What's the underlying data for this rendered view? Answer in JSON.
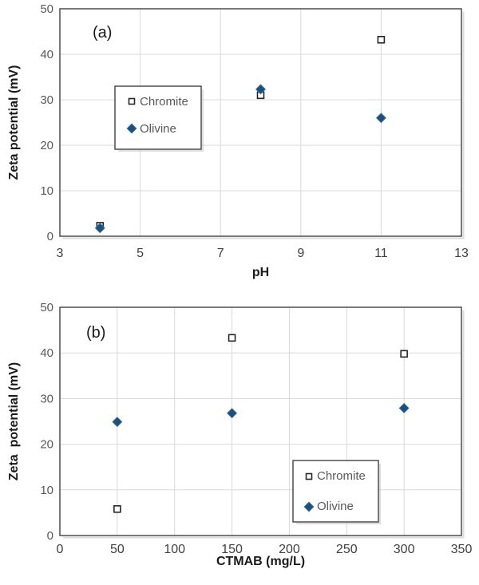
{
  "figure": {
    "background": "#ffffff",
    "accent_colors": {
      "olivine_fill": "#1F4E79",
      "olivine_stroke": "#2E6DA4",
      "chromite_fill": "#FFFFFF",
      "chromite_stroke": "#262626",
      "gridline": "#D9D9D9",
      "plot_border": "#404040",
      "shadow": "#C6C6C6",
      "tick_label": "#595959"
    }
  },
  "chart_data": [
    {
      "type": "scatter",
      "panel_label": "(a)",
      "title": "",
      "xlabel": "pH",
      "ylabel": "Zeta potential (mV)",
      "xlim": [
        3,
        13
      ],
      "ylim": [
        0,
        50
      ],
      "xticks": [
        3,
        5,
        7,
        9,
        11,
        13
      ],
      "yticks": [
        0,
        10,
        20,
        30,
        40,
        50
      ],
      "grid": true,
      "legend_position": "inside-upper-left-center",
      "legend_entries": [
        "Chromite",
        "Olivine"
      ],
      "series": [
        {
          "name": "Chromite",
          "marker": "open-square",
          "fill": "#FFFFFF",
          "stroke": "#262626",
          "points": [
            {
              "x": 4,
              "y": 2.3
            },
            {
              "x": 8,
              "y": 31.0
            },
            {
              "x": 11,
              "y": 43.2
            }
          ]
        },
        {
          "name": "Olivine",
          "marker": "filled-diamond",
          "fill": "#1F4E79",
          "stroke": "#2E6DA4",
          "points": [
            {
              "x": 4,
              "y": 1.8
            },
            {
              "x": 8,
              "y": 32.3
            },
            {
              "x": 11,
              "y": 26.0
            }
          ]
        }
      ]
    },
    {
      "type": "scatter",
      "panel_label": "(b)",
      "title": "",
      "xlabel": "CTMAB (mg/L)",
      "ylabel": "Zeta  potential (mV)",
      "xlim": [
        0,
        350
      ],
      "ylim": [
        0,
        50
      ],
      "xticks": [
        0,
        50,
        100,
        150,
        200,
        250,
        300,
        350
      ],
      "yticks": [
        0,
        10,
        20,
        30,
        40,
        50
      ],
      "grid": true,
      "legend_position": "inside-lower-right",
      "legend_entries": [
        "Chromite",
        "Olivine"
      ],
      "series": [
        {
          "name": "Chromite",
          "marker": "open-square",
          "fill": "#FFFFFF",
          "stroke": "#262626",
          "points": [
            {
              "x": 50,
              "y": 5.8
            },
            {
              "x": 150,
              "y": 43.3
            },
            {
              "x": 300,
              "y": 39.8
            }
          ]
        },
        {
          "name": "Olivine",
          "marker": "filled-diamond",
          "fill": "#1F4E79",
          "stroke": "#2E6DA4",
          "points": [
            {
              "x": 50,
              "y": 24.9
            },
            {
              "x": 150,
              "y": 26.8
            },
            {
              "x": 300,
              "y": 27.9
            }
          ]
        }
      ]
    }
  ]
}
